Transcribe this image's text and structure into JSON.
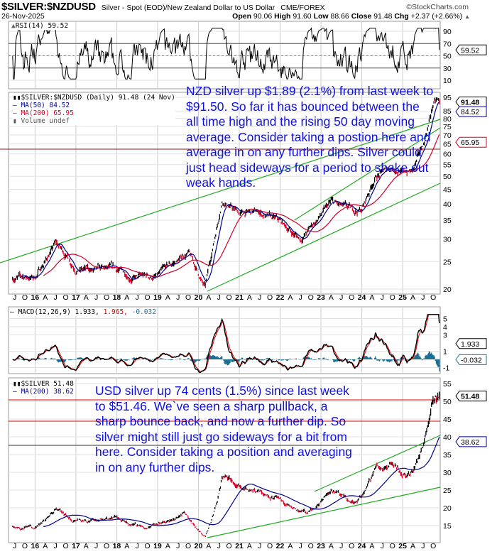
{
  "header": {
    "symbol": "$SILVER:$NZDUSD",
    "description": "Silver - Spot (EOD)/New Zealand Dollar to US Dollar",
    "exchange": "CME/FOREX",
    "brand": "©StockCharts.com",
    "date": "26-Nov-2025",
    "open_label": "Open",
    "open": "90.06",
    "high_label": "High",
    "high": "91.60",
    "low_label": "Low",
    "low": "88.66",
    "close_label": "Close",
    "close": "91.48",
    "chg_label": "Chg",
    "chg": "+2.37 (+2.66%)",
    "chg_arrow": "▲"
  },
  "annotations": {
    "nzd_note": "NZD silver up $1.89 (2.1%) from last week to $91.50. So far it has bounced between the all time high and the rising 50 day moving average. Consider taking a postion here and average in on any further dips. Silver could just head sideways for a period to shake out weak hands.",
    "usd_note": "USD silver up 74 cents (1.5%) since last week to $51.46. We`ve seen a sharp pullback, a sharp bounce back, and now a further dip. So silver might still just go sideways for a bit from here. Consider taking a position and averaging in on any further dips."
  },
  "colors": {
    "price_up": "#000000",
    "price_down": "#e0002a",
    "ma50": "#00008b",
    "ma200": "#d0002a",
    "trendline": "#22aa22",
    "hline_red": "#e00000",
    "macd": "#000000",
    "signal": "#e00000",
    "histogram": "#1f6e94",
    "note_text": "#1010e0"
  },
  "chart_data": [
    {
      "type": "line",
      "panel": "RSI",
      "legend": "RSI(14) 59.52",
      "last_value": "59.52",
      "y_ticks": [
        "90",
        "70",
        "50",
        "30",
        "10"
      ],
      "reference_levels": [
        70,
        30
      ]
    },
    {
      "type": "candlestick",
      "panel": "price-nzd",
      "scale": "log",
      "legend_title": "$SILVER:$NZDUSD (Daily) 91.48 (24 Nov)",
      "series": [
        {
          "name": "MA(50) 84.52",
          "last": "84.52"
        },
        {
          "name": "MA(200) 65.95",
          "last": "65.95"
        },
        {
          "name": "Volume undef"
        }
      ],
      "last_value": "91.48",
      "ylim": [
        19,
        97
      ],
      "y_ticks": [
        "95",
        "85",
        "80",
        "75",
        "70",
        "65",
        "60",
        "55",
        "50",
        "45",
        "40",
        "35",
        "30",
        "25",
        "20"
      ],
      "x": [
        "2015-07",
        "2016-01",
        "2016-07",
        "2017-01",
        "2017-07",
        "2018-01",
        "2018-07",
        "2019-01",
        "2019-07",
        "2019-10",
        "2020-03",
        "2020-08",
        "2021-01",
        "2021-07",
        "2022-01",
        "2022-07",
        "2022-10",
        "2023-04",
        "2023-10",
        "2024-01",
        "2024-05",
        "2024-10",
        "2025-01",
        "2025-04",
        "2025-07",
        "2025-10",
        "2025-11"
      ],
      "values": [
        22,
        22,
        29,
        24,
        23,
        23,
        22,
        22,
        25,
        27,
        20,
        42,
        37,
        37,
        34,
        30,
        33,
        40,
        37,
        38,
        50,
        54,
        52,
        52,
        63,
        90,
        91.48
      ]
    },
    {
      "type": "line",
      "panel": "MACD",
      "legend_prefix": "MACD(12,26,9) 1.933, ",
      "signal_value": "1.965, ",
      "hist_value": "-0.032",
      "last_value": "1.933",
      "last_hist": "-0.032",
      "y_ticks": [
        "5",
        "4",
        "3",
        "1",
        "-1"
      ]
    },
    {
      "type": "line",
      "panel": "price-usd",
      "scale": "linear",
      "legend_title": "$SILVER 51.48",
      "series": [
        {
          "name": "MA(200) 38.62",
          "last": "38.62"
        }
      ],
      "last_value": "51.48",
      "ylim": [
        10,
        57
      ],
      "y_ticks": [
        "55",
        "50",
        "45",
        "40",
        "35",
        "30",
        "25",
        "20",
        "15"
      ],
      "x": [
        "2015-07",
        "2016-01",
        "2016-07",
        "2017-01",
        "2018-01",
        "2018-10",
        "2019-07",
        "2019-09",
        "2020-03",
        "2020-08",
        "2021-01",
        "2021-07",
        "2022-01",
        "2022-09",
        "2023-04",
        "2023-10",
        "2024-01",
        "2024-05",
        "2024-10",
        "2025-01",
        "2025-04",
        "2025-07",
        "2025-10",
        "2025-11"
      ],
      "values": [
        15,
        14,
        20,
        16,
        17,
        14.5,
        17,
        18.5,
        12,
        28,
        26,
        25,
        23,
        18,
        25,
        22,
        23,
        31,
        33,
        30,
        30,
        38,
        52,
        51.48
      ]
    }
  ],
  "x_tick_labels": [
    "J",
    "O",
    "16",
    "A",
    "J",
    "O",
    "17",
    "A",
    "J",
    "O",
    "18",
    "A",
    "J",
    "O",
    "19",
    "A",
    "J",
    "O",
    "20",
    "A",
    "J",
    "O",
    "21",
    "A",
    "J",
    "O",
    "22",
    "A",
    "J",
    "O",
    "23",
    "A",
    "J",
    "O",
    "24",
    "A",
    "J",
    "O",
    "25",
    "A",
    "J",
    "O"
  ]
}
